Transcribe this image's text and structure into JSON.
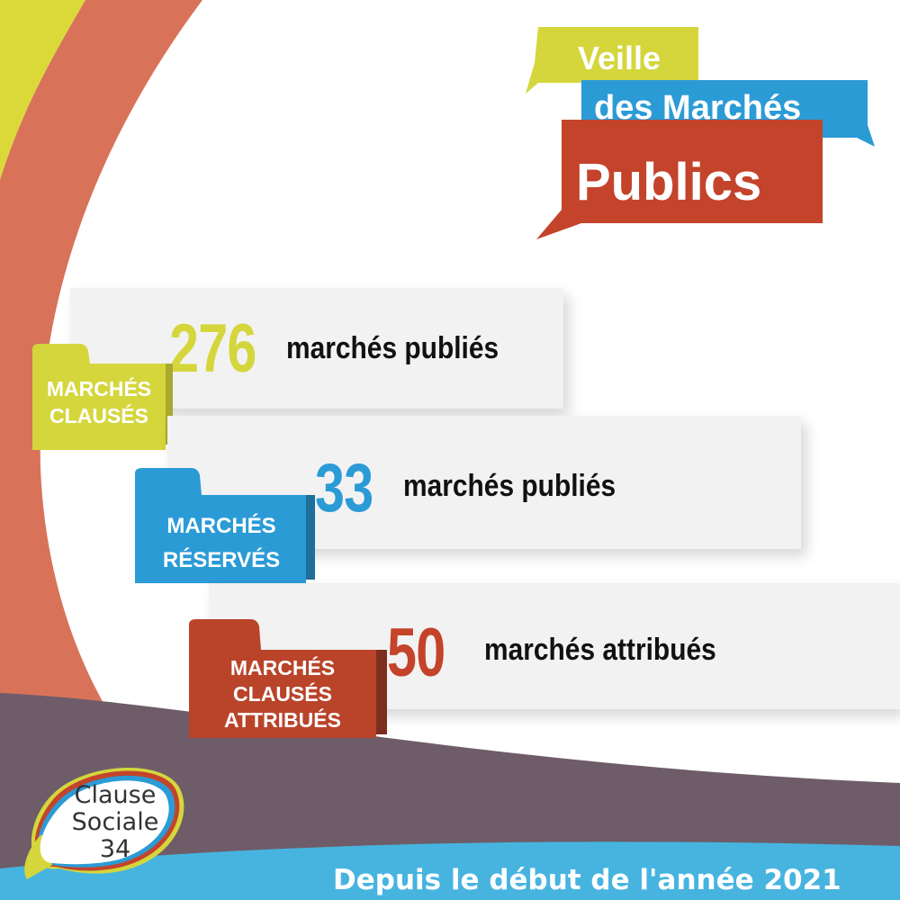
{
  "title": {
    "line1": "Veille",
    "line2": "des Marchés",
    "line3": "Publics"
  },
  "stats": [
    {
      "number": "276",
      "label": "marchés publiés",
      "tag": [
        "MARCHÉS",
        "CLAUSÉS"
      ]
    },
    {
      "number": "33",
      "label": "marchés publiés",
      "tag": [
        "MARCHÉS",
        "RÉSERVÉS"
      ]
    },
    {
      "number": "50",
      "label": "marchés attribués",
      "tag": [
        "MARCHÉS",
        "CLAUSÉS",
        "ATTRIBUÉS"
      ]
    }
  ],
  "logo": {
    "line1": "Clause",
    "line2": "Sociale",
    "line3": "34"
  },
  "footer": "Depuis le début de l'année 2021",
  "colors": {
    "yellow": "#d4d63c",
    "blue": "#2b9bd6",
    "red": "#c4432b",
    "coral": "#d8735a",
    "plum": "#6e5d68",
    "sky": "#47b4e0"
  }
}
